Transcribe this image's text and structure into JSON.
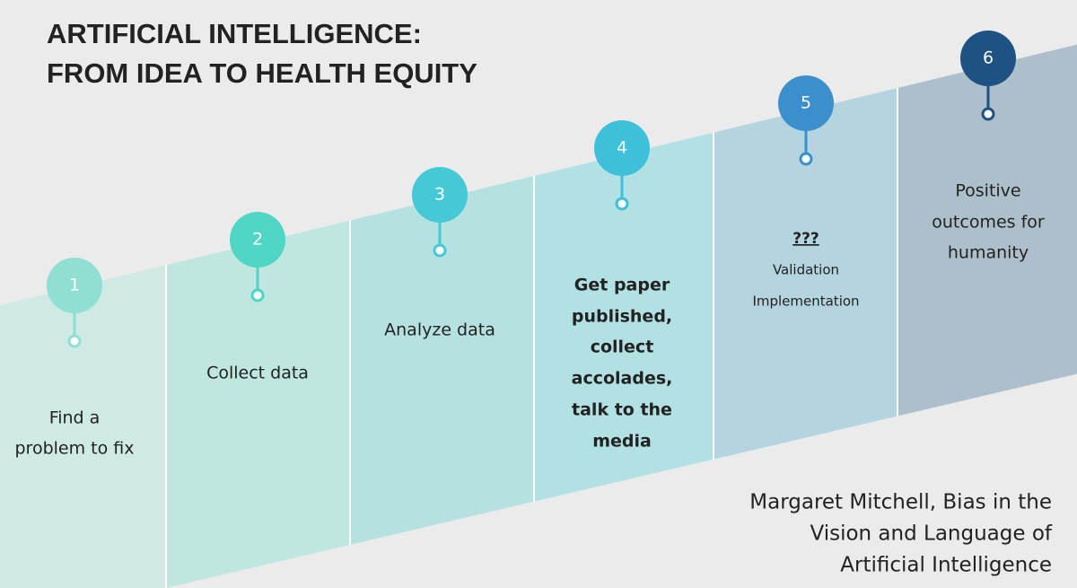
{
  "header": {
    "title": [
      "ARTIFICIAL INTELLIGENCE:",
      "FROM IDEA TO HEALTH EQUITY"
    ]
  },
  "steps": [
    {
      "number": "1",
      "lines": [
        "Find a",
        "problem to fix"
      ]
    },
    {
      "number": "2",
      "lines": [
        "Collect data"
      ]
    },
    {
      "number": "3",
      "lines": [
        "Analyze data"
      ]
    },
    {
      "number": "4",
      "lines": [
        "Get paper",
        "published,",
        "collect",
        "accolades,",
        "talk to the",
        "media"
      ]
    },
    {
      "number": "5",
      "lines": [
        "???",
        "Validation",
        "Implementation"
      ]
    },
    {
      "number": "6",
      "lines": [
        "Positive",
        "outcomes for",
        "humanity"
      ]
    }
  ],
  "citation": [
    "Margaret Mitchell, Bias in the",
    "Vision and Language of",
    "Artificial Intelligence"
  ]
}
